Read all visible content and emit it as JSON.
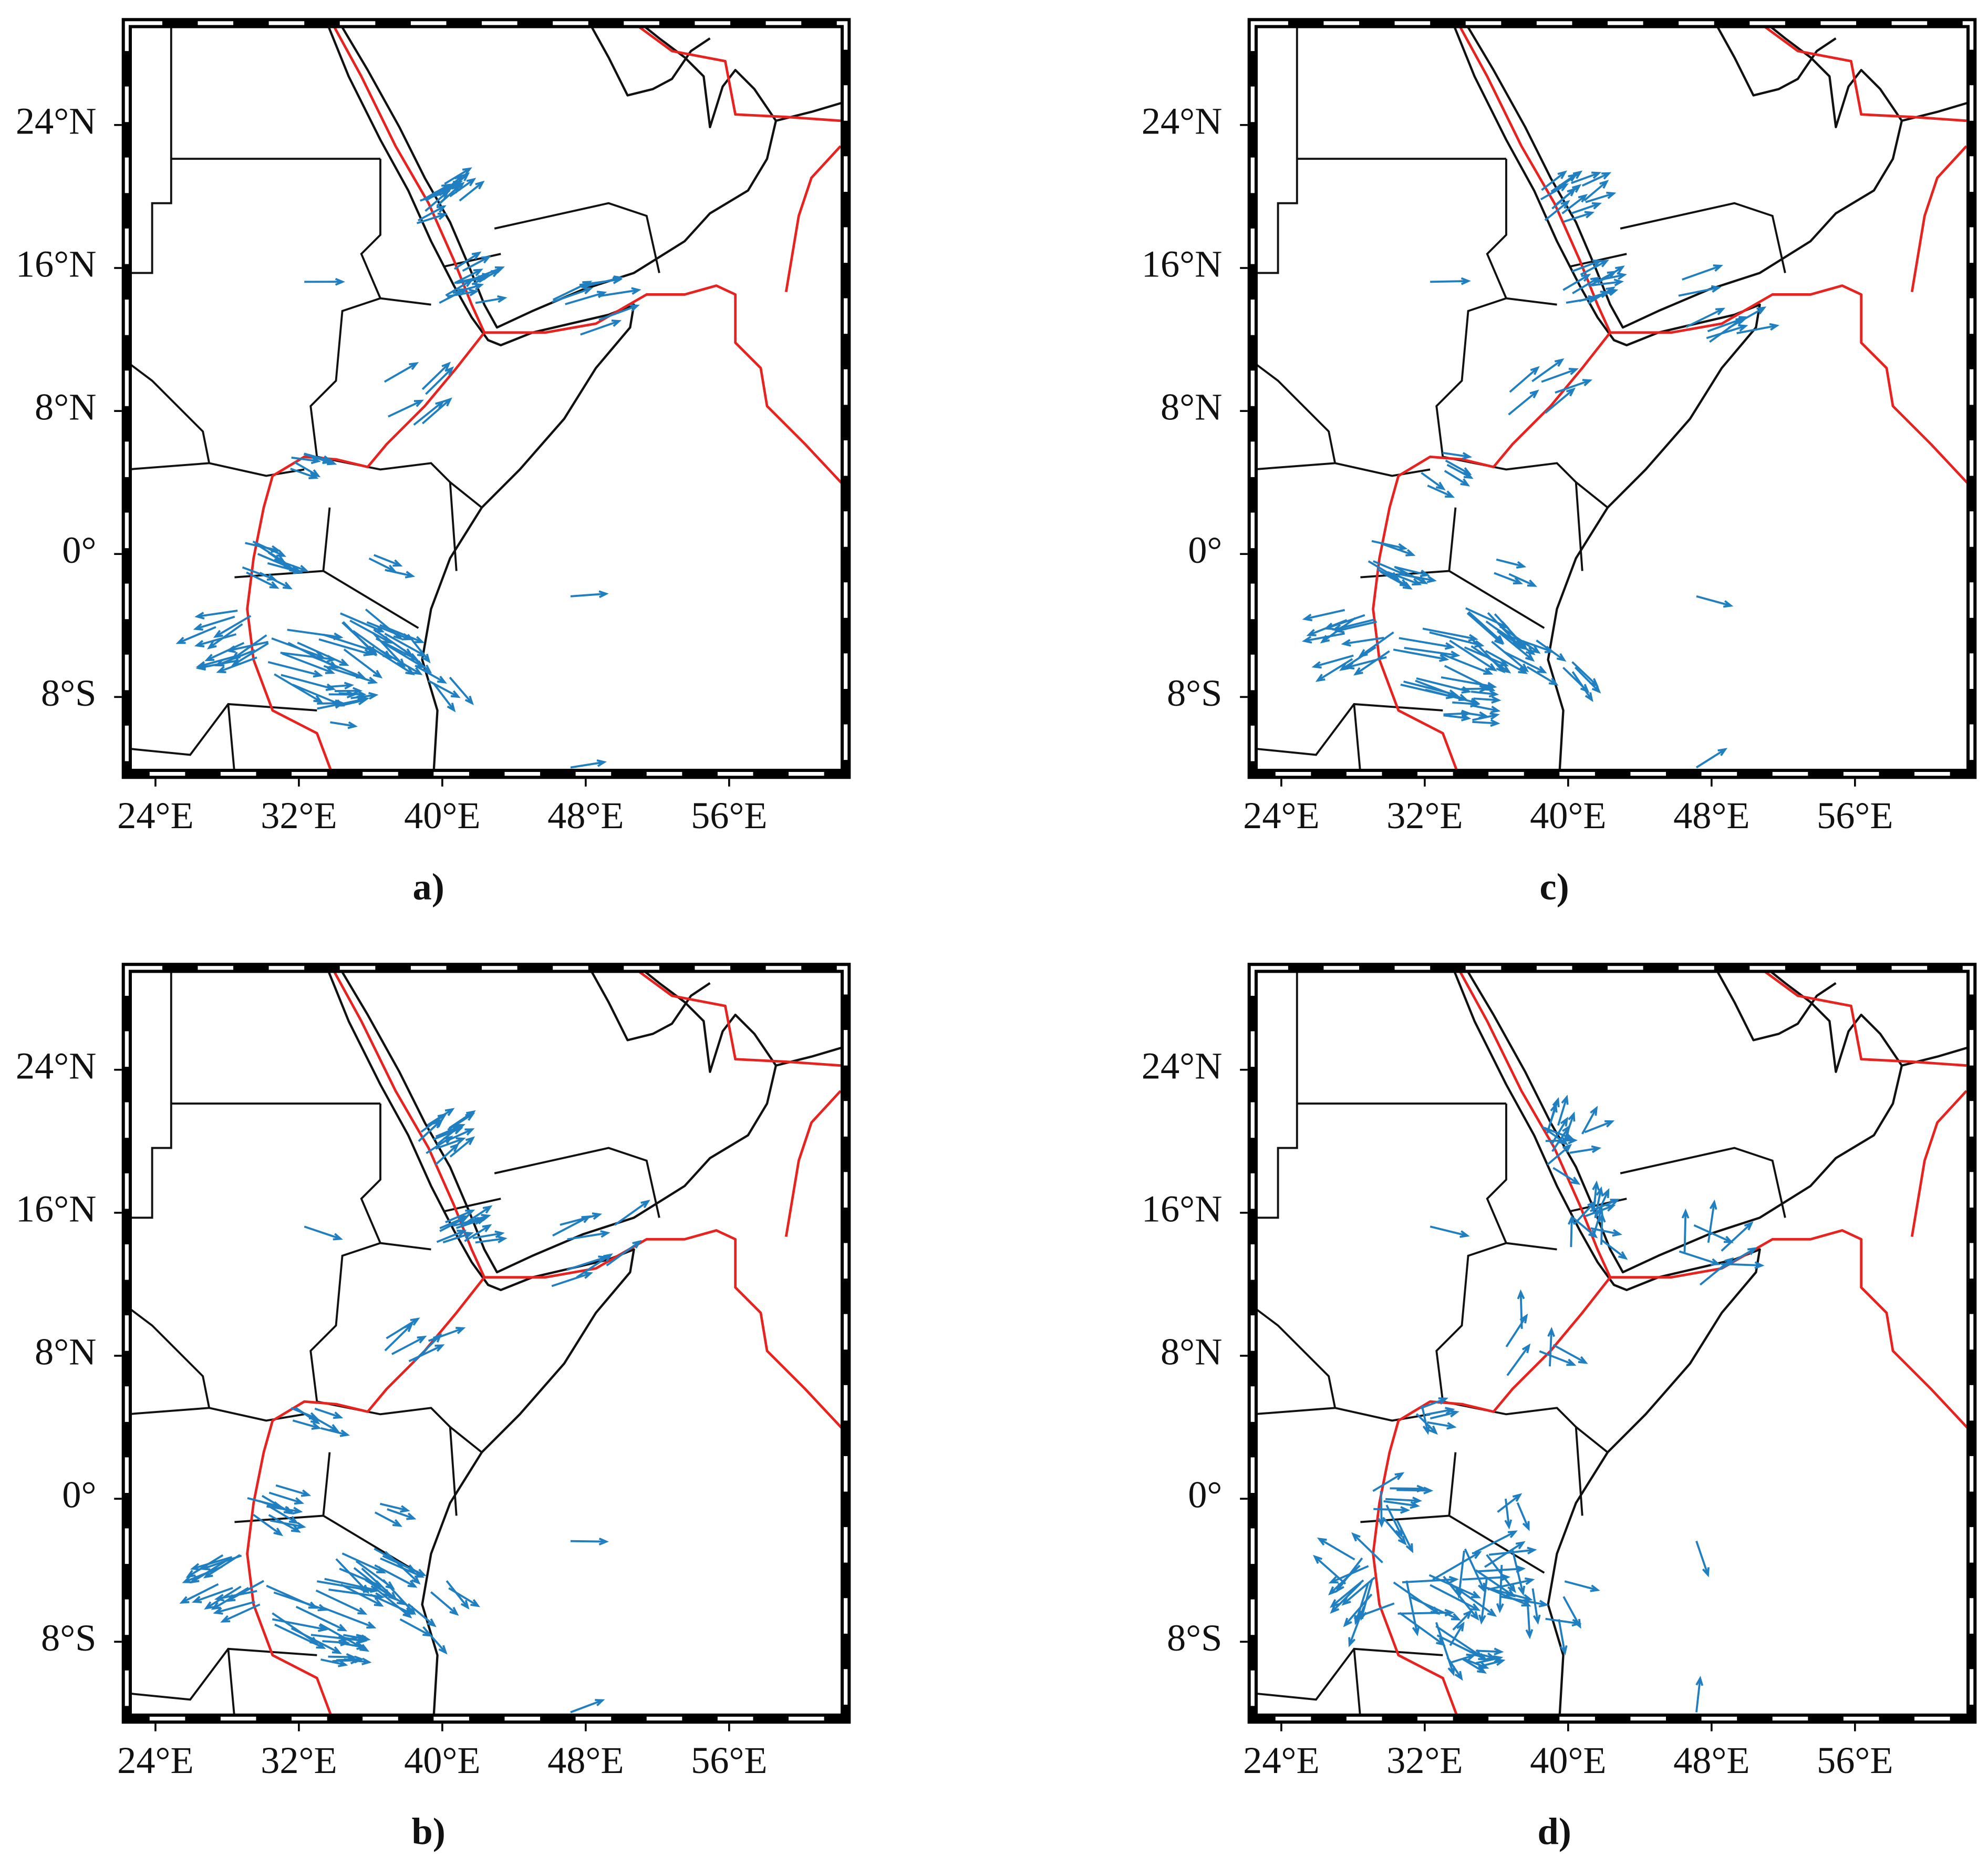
{
  "panels": [
    {
      "label": "a)",
      "xlim": [
        22.4,
        62.5
      ],
      "ylim": [
        -12.3,
        29.7
      ],
      "xticks": [
        {
          "value": 24,
          "label": "24°E"
        },
        {
          "value": 32,
          "label": "32°E"
        },
        {
          "value": 40,
          "label": "40°E"
        },
        {
          "value": 48,
          "label": "48°E"
        },
        {
          "value": 56,
          "label": "56°E"
        }
      ],
      "yticks": [
        {
          "value": 24,
          "label": "24°N"
        },
        {
          "value": 16,
          "label": "16°N"
        },
        {
          "value": 8,
          "label": "8°N"
        },
        {
          "value": 0,
          "label": "0°"
        },
        {
          "value": -8,
          "label": "8°S"
        }
      ]
    },
    {
      "label": "b)",
      "xlim": [
        22.4,
        62.5
      ],
      "ylim": [
        -12.3,
        29.7
      ],
      "xticks": [
        {
          "value": 24,
          "label": "24°E"
        },
        {
          "value": 32,
          "label": "32°E"
        },
        {
          "value": 40,
          "label": "40°E"
        },
        {
          "value": 48,
          "label": "48°E"
        },
        {
          "value": 56,
          "label": "56°E"
        }
      ],
      "yticks": [
        {
          "value": 24,
          "label": "24°N"
        },
        {
          "value": 16,
          "label": "16°N"
        },
        {
          "value": 8,
          "label": "8°N"
        },
        {
          "value": 0,
          "label": "0°"
        },
        {
          "value": -8,
          "label": "8°S"
        }
      ]
    },
    {
      "label": "c)",
      "xlim": [
        22.4,
        62.5
      ],
      "ylim": [
        -12.3,
        29.7
      ],
      "xticks": [
        {
          "value": 24,
          "label": "24°E"
        },
        {
          "value": 32,
          "label": "32°E"
        },
        {
          "value": 40,
          "label": "40°E"
        },
        {
          "value": 48,
          "label": "48°E"
        },
        {
          "value": 56,
          "label": "56°E"
        }
      ],
      "yticks": [
        {
          "value": 24,
          "label": "24°N"
        },
        {
          "value": 16,
          "label": "16°N"
        },
        {
          "value": 8,
          "label": "8°N"
        },
        {
          "value": 0,
          "label": "0°"
        },
        {
          "value": -8,
          "label": "8°S"
        }
      ]
    },
    {
      "label": "d)",
      "xlim": [
        22.4,
        62.5
      ],
      "ylim": [
        -12.3,
        29.7
      ],
      "xticks": [
        {
          "value": 24,
          "label": "24°E"
        },
        {
          "value": 32,
          "label": "32°E"
        },
        {
          "value": 40,
          "label": "40°E"
        },
        {
          "value": 48,
          "label": "48°E"
        },
        {
          "value": 56,
          "label": "56°E"
        }
      ],
      "yticks": [
        {
          "value": 24,
          "label": "24°N"
        },
        {
          "value": 16,
          "label": "16°N"
        },
        {
          "value": 8,
          "label": "8°N"
        },
        {
          "value": 0,
          "label": "0°"
        },
        {
          "value": -8,
          "label": "8°S"
        }
      ]
    }
  ]
}
